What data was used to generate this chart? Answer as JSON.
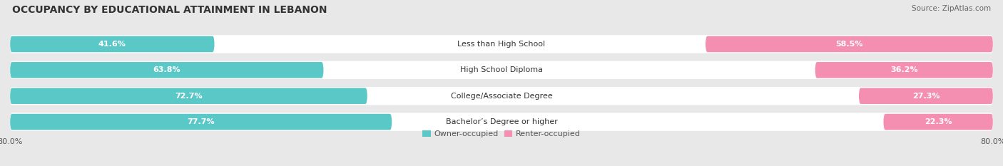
{
  "title": "OCCUPANCY BY EDUCATIONAL ATTAINMENT IN LEBANON",
  "source": "Source: ZipAtlas.com",
  "categories": [
    "Less than High School",
    "High School Diploma",
    "College/Associate Degree",
    "Bachelor’s Degree or higher"
  ],
  "owner_values": [
    41.6,
    63.8,
    72.7,
    77.7
  ],
  "renter_values": [
    58.5,
    36.2,
    27.3,
    22.3
  ],
  "owner_color": "#5BC8C8",
  "renter_color": "#F48FB1",
  "background_color": "#e8e8e8",
  "bar_background": "#ffffff",
  "title_fontsize": 10,
  "source_fontsize": 7.5,
  "label_fontsize": 8,
  "value_fontsize": 8,
  "xlim_left": -100,
  "xlim_right": 100,
  "x_tick_label_left": "80.0%",
  "x_tick_label_right": "80.0%",
  "legend_labels": [
    "Owner-occupied",
    "Renter-occupied"
  ],
  "bar_height": 0.62,
  "total": 100
}
